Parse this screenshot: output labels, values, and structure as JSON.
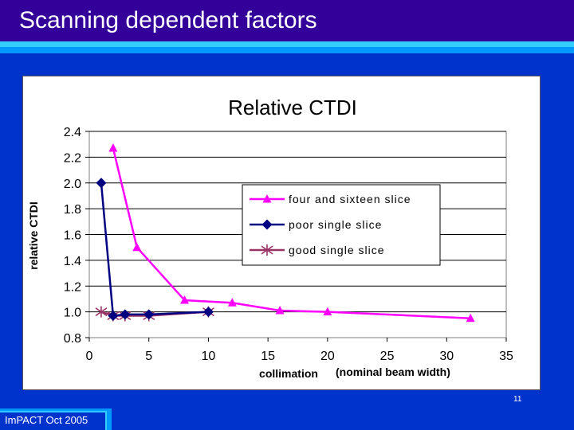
{
  "slide": {
    "title": "Scanning dependent factors",
    "footer": "ImPACT Oct 2005",
    "slide_number": "11"
  },
  "colors": {
    "background": "#0033cc",
    "title_bar": "#330099",
    "accent_cyan": "#33ccff",
    "accent_blue": "#0099ff",
    "series_four_sixteen": "#ff00ff",
    "series_poor_single": "#000080",
    "series_good_single": "#993366"
  },
  "chart_data": {
    "type": "line",
    "title": "Relative CTDI",
    "xlabel": "collimation",
    "xlabel_suffix": "(nominal beam width)",
    "ylabel": "relative CTDI",
    "xlim": [
      0,
      35
    ],
    "ylim": [
      0.8,
      2.4
    ],
    "x_ticks": [
      "0",
      "5",
      "10",
      "15",
      "20",
      "25",
      "30",
      "35"
    ],
    "y_ticks": [
      "0.8",
      "1.0",
      "1.2",
      "1.4",
      "1.6",
      "1.8",
      "2.0",
      "2.2",
      "2.4"
    ],
    "grid": "horizontal",
    "legend_position": "right-center",
    "series": [
      {
        "name": "four and sixteen slice",
        "marker": "triangle",
        "color": "#ff00ff",
        "points": [
          [
            2,
            2.27
          ],
          [
            4,
            1.5
          ],
          [
            8,
            1.09
          ],
          [
            12,
            1.07
          ],
          [
            16,
            1.01
          ],
          [
            20,
            1.0
          ],
          [
            32,
            0.95
          ]
        ]
      },
      {
        "name": "poor single slice",
        "marker": "diamond",
        "color": "#000080",
        "points": [
          [
            1,
            2.0
          ],
          [
            2,
            0.97
          ],
          [
            3,
            0.98
          ],
          [
            5,
            0.98
          ],
          [
            10,
            1.0
          ]
        ]
      },
      {
        "name": "good single slice",
        "marker": "asterisk",
        "color": "#993366",
        "points": [
          [
            1,
            1.0
          ],
          [
            2,
            0.97
          ],
          [
            3,
            0.97
          ],
          [
            5,
            0.97
          ],
          [
            10,
            1.0
          ]
        ]
      }
    ]
  }
}
